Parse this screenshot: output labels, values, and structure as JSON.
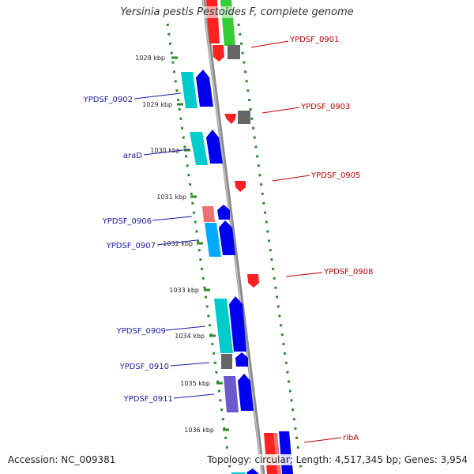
{
  "title": "Yersinia pestis Pestoides F, complete genome",
  "accession": "Accession: NC_009381",
  "topology": "Topology: circular; Length: 4,517,345 bp; Genes: 3,954",
  "colors": {
    "backbone": "#8a8a8a",
    "ticks": "#2e8b2e",
    "forward_gene": "#0000ee",
    "reverse_gene": "#ff1a1a",
    "label_forward": "#1a1aaa",
    "label_reverse": "#c00000"
  },
  "kbp_labels": [
    "1028 kbp",
    "1029 kbp",
    "1030 kbp",
    "1031 kbp",
    "1032 kbp",
    "1033 kbp",
    "1034 kbp",
    "1035 kbp",
    "1036 kbp"
  ],
  "left_labels": [
    "YPDSF_0902",
    "araD",
    "YPDSF_0906",
    "YPDSF_0907",
    "YPDSF_0909",
    "YPDSF_0910",
    "YPDSF_0911"
  ],
  "right_labels": [
    "YPDSF_0901",
    "YPDSF_0903",
    "YPDSF_0905",
    "YPDSF_0908",
    "ribA"
  ]
}
